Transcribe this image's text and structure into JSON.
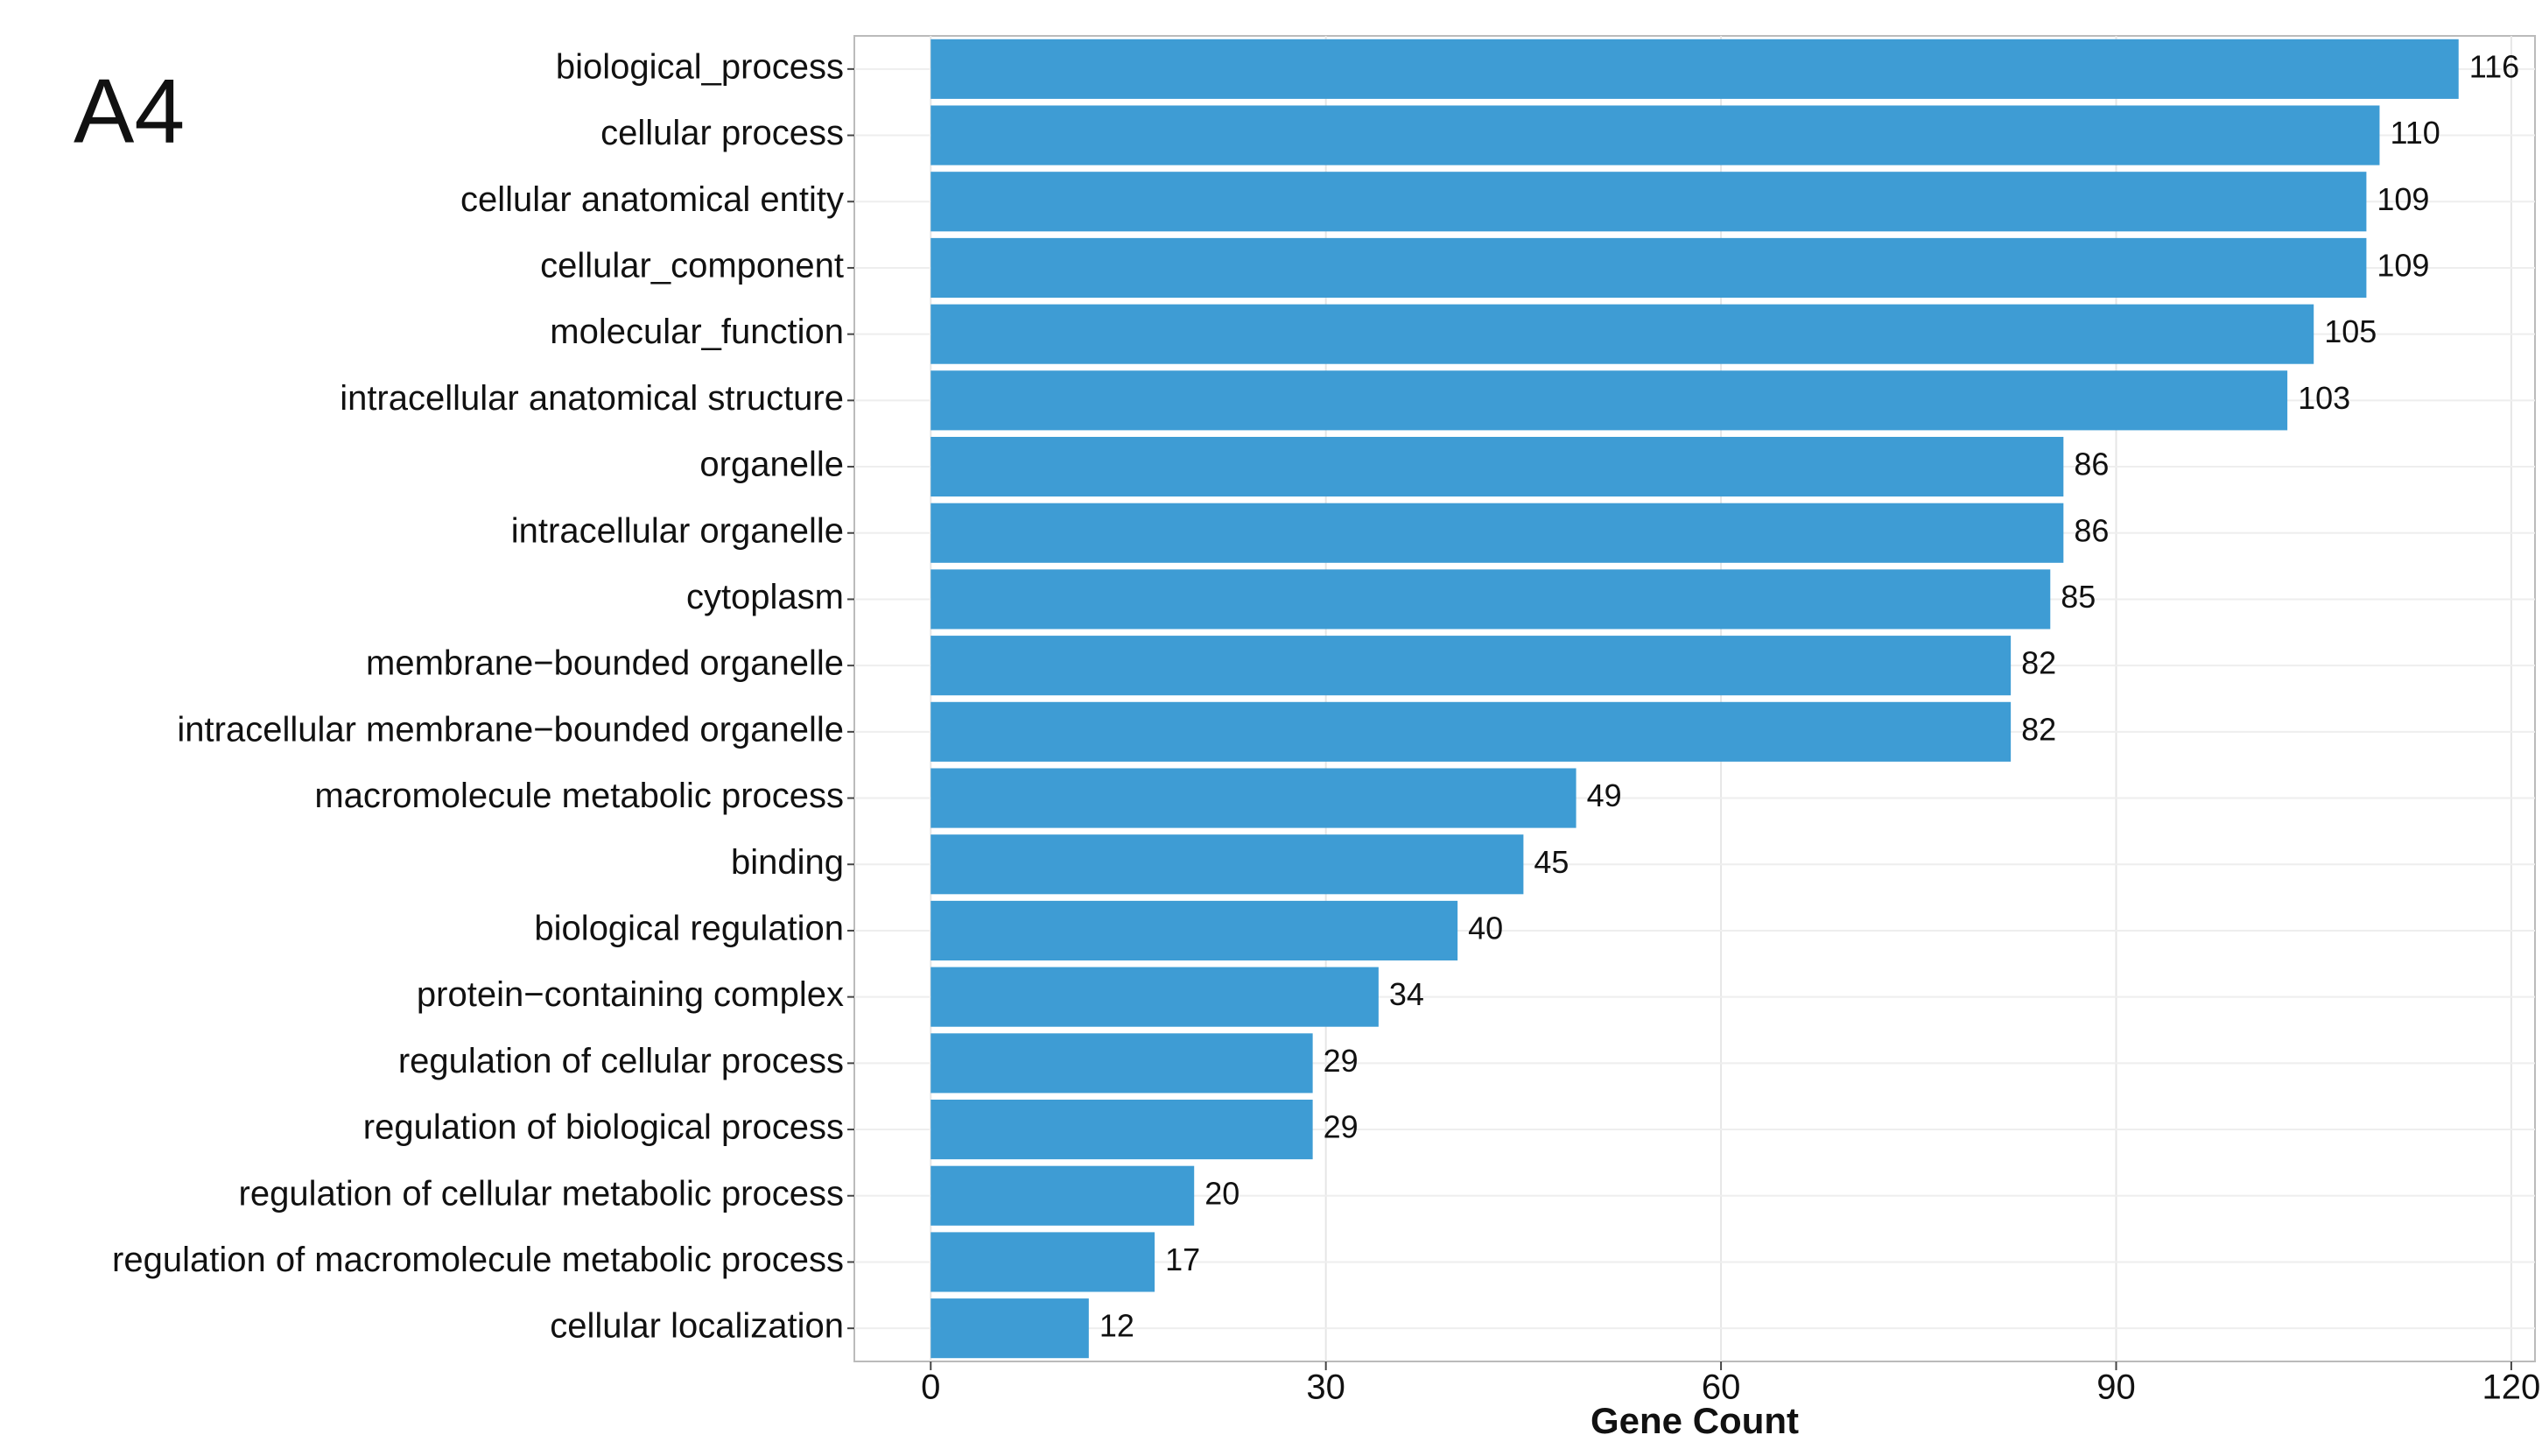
{
  "chart_data": {
    "type": "barh",
    "panel_label": "A4",
    "x_label": "Gene Count",
    "categories": [
      "biological_process",
      "cellular process",
      "cellular anatomical entity",
      "cellular_component",
      "molecular_function",
      "intracellular anatomical structure",
      "organelle",
      "intracellular organelle",
      "cytoplasm",
      "membrane−bounded organelle",
      "intracellular membrane−bounded organelle",
      "macromolecule metabolic process",
      "binding",
      "biological regulation",
      "protein−containing complex",
      "regulation of cellular process",
      "regulation of biological process",
      "regulation of cellular metabolic process",
      "regulation of macromolecule metabolic process",
      "cellular localization"
    ],
    "values": [
      116,
      110,
      109,
      109,
      105,
      103,
      86,
      86,
      85,
      82,
      82,
      49,
      45,
      40,
      34,
      29,
      29,
      20,
      17,
      12
    ],
    "color": "#3e9cd4",
    "xlim": [
      -5.8,
      121.8
    ],
    "xticks": [
      0,
      30,
      60,
      90,
      120
    ],
    "grid": true
  }
}
